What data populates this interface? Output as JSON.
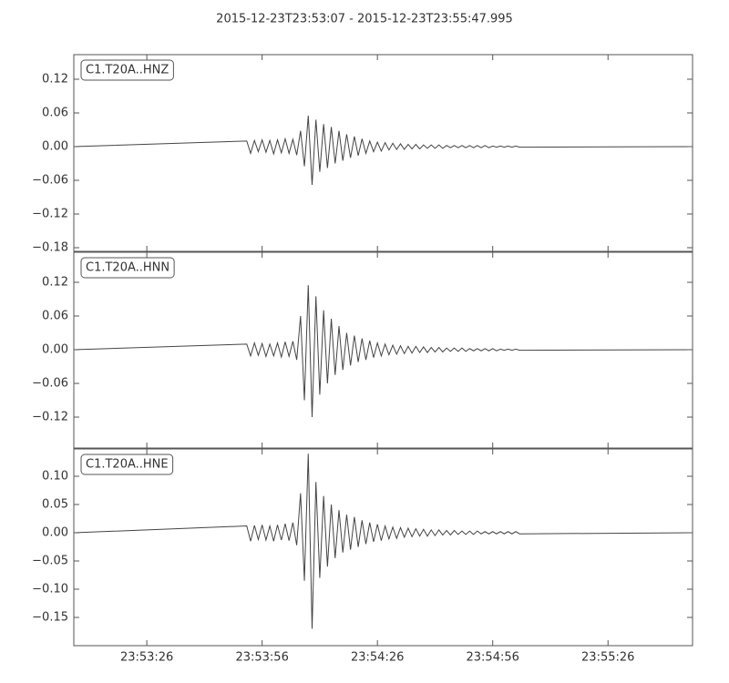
{
  "chart_data": {
    "type": "line",
    "title": "2015-12-23T23:53:07  -  2015-12-23T23:55:47.995",
    "xlim": [
      "23:53:07",
      "23:55:47.995"
    ],
    "xticks": [
      "23:53:26",
      "23:53:56",
      "23:54:26",
      "23:54:56",
      "23:55:26"
    ],
    "x": [
      "23:53:07",
      "23:53:52",
      "23:53:53",
      "23:53:54",
      "23:53:55",
      "23:53:56",
      "23:53:57",
      "23:53:58",
      "23:53:59",
      "23:54:00",
      "23:54:01",
      "23:54:02",
      "23:54:03",
      "23:54:04",
      "23:54:05",
      "23:54:06",
      "23:54:07",
      "23:54:08",
      "23:54:09",
      "23:54:10",
      "23:54:11",
      "23:54:12",
      "23:54:13",
      "23:54:14",
      "23:54:15",
      "23:54:16",
      "23:54:17",
      "23:54:18",
      "23:54:19",
      "23:54:20",
      "23:54:21",
      "23:54:22",
      "23:54:23",
      "23:54:24",
      "23:54:25",
      "23:54:26",
      "23:54:27",
      "23:54:28",
      "23:54:29",
      "23:54:30",
      "23:54:31",
      "23:54:32",
      "23:54:33",
      "23:54:34",
      "23:54:35",
      "23:54:36",
      "23:54:37",
      "23:54:38",
      "23:54:39",
      "23:54:40",
      "23:54:41",
      "23:54:42",
      "23:54:43",
      "23:54:44",
      "23:54:45",
      "23:54:46",
      "23:54:47",
      "23:54:48",
      "23:54:49",
      "23:54:50",
      "23:54:51",
      "23:54:52",
      "23:54:53",
      "23:54:54",
      "23:54:55",
      "23:54:56",
      "23:54:57",
      "23:54:58",
      "23:54:59",
      "23:55:00",
      "23:55:01",
      "23:55:02",
      "23:55:03",
      "23:55:47.995"
    ],
    "series": [
      {
        "name": "C1.T20A..HNZ",
        "color": "#444444",
        "ylim": [
          -0.1865,
          0.1638
        ],
        "yticks": [
          0.12,
          0.06,
          {
            "value": 0,
            "label": "0.00"
          },
          {
            "value": -0.06,
            "label": "−0.06"
          },
          {
            "value": -0.12,
            "label": "−0.12"
          },
          {
            "value": -0.18,
            "label": "−0.18"
          }
        ],
        "values": [
          0,
          0.01,
          -0.012,
          0.011,
          -0.009,
          0.012,
          -0.01,
          0.011,
          -0.013,
          0.012,
          -0.011,
          0.014,
          -0.012,
          0.013,
          -0.015,
          0.028,
          -0.035,
          0.055,
          -0.068,
          0.048,
          -0.045,
          0.04,
          -0.038,
          0.035,
          -0.03,
          0.028,
          -0.025,
          0.022,
          -0.02,
          0.018,
          -0.016,
          0.014,
          -0.012,
          0.01,
          -0.009,
          0.008,
          -0.008,
          0.007,
          -0.006,
          0.006,
          -0.005,
          0.005,
          -0.005,
          0.004,
          -0.004,
          0.004,
          -0.004,
          0.003,
          -0.003,
          0.003,
          -0.003,
          0.003,
          -0.003,
          0.002,
          -0.002,
          0.002,
          -0.002,
          0.002,
          -0.002,
          0.002,
          -0.002,
          0.002,
          -0.002,
          0.002,
          -0.002,
          0.001,
          -0.001,
          0.001,
          -0.001,
          0.001,
          -0.001,
          0.001,
          -0.001,
          0
        ]
      },
      {
        "name": "C1.T20A..HNN",
        "color": "#444444",
        "ylim": [
          -0.1751,
          0.1735
        ],
        "yticks": [
          0.12,
          0.06,
          {
            "value": 0,
            "label": "0.00"
          },
          {
            "value": -0.06,
            "label": "−0.06"
          },
          {
            "value": -0.12,
            "label": "−0.12"
          }
        ],
        "values": [
          0,
          0.01,
          -0.011,
          0.012,
          -0.01,
          0.011,
          -0.012,
          0.01,
          -0.011,
          0.012,
          -0.013,
          0.014,
          -0.012,
          0.015,
          -0.018,
          0.06,
          -0.09,
          0.115,
          -0.12,
          0.095,
          -0.08,
          0.07,
          -0.06,
          0.055,
          -0.045,
          0.042,
          -0.036,
          0.03,
          -0.028,
          0.025,
          -0.022,
          0.02,
          -0.018,
          0.016,
          -0.014,
          0.012,
          -0.011,
          0.01,
          -0.009,
          0.008,
          -0.008,
          0.007,
          -0.007,
          0.006,
          -0.006,
          0.006,
          -0.005,
          0.005,
          -0.005,
          0.004,
          -0.004,
          0.004,
          -0.004,
          0.003,
          -0.003,
          0.003,
          -0.003,
          0.003,
          -0.003,
          0.002,
          -0.002,
          0.002,
          -0.002,
          0.002,
          -0.002,
          0.002,
          -0.002,
          0.001,
          -0.001,
          0.001,
          -0.001,
          0.001,
          -0.001,
          0
        ]
      },
      {
        "name": "C1.T20A..HNE",
        "color": "#444444",
        "ylim": [
          -0.2,
          0.1484
        ],
        "yticks": [
          {
            "value": 0.1,
            "label": "0.10"
          },
          0.05,
          {
            "value": 0,
            "label": "0.00"
          },
          {
            "value": -0.05,
            "label": "−0.05"
          },
          {
            "value": -0.1,
            "label": "−0.10"
          },
          {
            "value": -0.15,
            "label": "−0.15"
          }
        ],
        "values": [
          0,
          0.012,
          -0.015,
          0.013,
          -0.012,
          0.014,
          -0.013,
          0.012,
          -0.015,
          0.014,
          -0.013,
          0.016,
          -0.014,
          0.018,
          -0.022,
          0.07,
          -0.085,
          0.14,
          -0.17,
          0.09,
          -0.08,
          0.065,
          -0.06,
          0.05,
          -0.045,
          0.04,
          -0.035,
          0.032,
          -0.03,
          0.028,
          -0.025,
          0.022,
          -0.02,
          0.018,
          -0.016,
          0.015,
          -0.014,
          0.012,
          -0.011,
          0.01,
          -0.01,
          0.009,
          -0.008,
          0.008,
          -0.007,
          0.007,
          -0.006,
          0.006,
          -0.006,
          0.005,
          -0.005,
          0.005,
          -0.004,
          0.004,
          -0.004,
          0.004,
          -0.003,
          0.003,
          -0.003,
          0.003,
          -0.003,
          0.003,
          -0.002,
          0.002,
          -0.002,
          0.002,
          -0.002,
          0.002,
          -0.002,
          0.002,
          -0.002,
          0.002,
          -0.002,
          0
        ]
      }
    ]
  }
}
